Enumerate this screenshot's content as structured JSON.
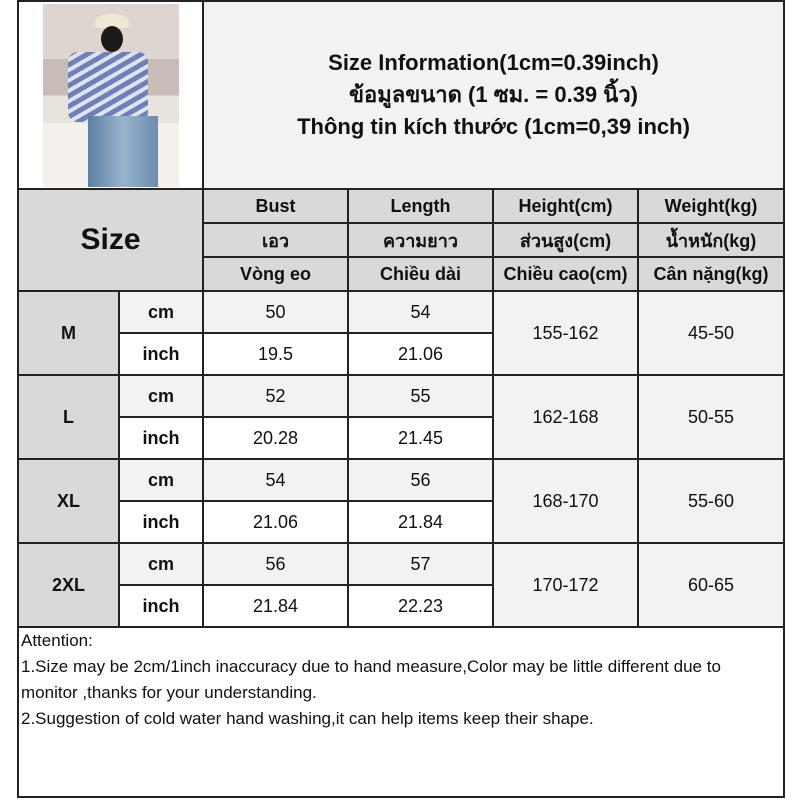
{
  "title": {
    "line1": "Size Information(1cm=0.39inch)",
    "line2": "ข้อมูลขนาด (1 ซม. = 0.39 นิ้ว)",
    "line3": "Thông tin kích thước (1cm=0,39 inch)"
  },
  "size_label": "Size",
  "columns": [
    {
      "en": "Bust",
      "th": "เอว",
      "vi": "Vòng eo"
    },
    {
      "en": "Length",
      "th": "ความยาว",
      "vi": "Chiều dài"
    },
    {
      "en": "Height(cm)",
      "th": "ส่วนสูง(cm)",
      "vi": "Chiều cao(cm)"
    },
    {
      "en": "Weight(kg)",
      "th": "น้ำหนัก(kg)",
      "vi": "Cân nặng(kg)"
    }
  ],
  "units": {
    "cm": "cm",
    "inch": "inch"
  },
  "rows": [
    {
      "size": "M",
      "bust_cm": "50",
      "length_cm": "54",
      "bust_inch": "19.5",
      "length_inch": "21.06",
      "height": "155-162",
      "weight": "45-50"
    },
    {
      "size": "L",
      "bust_cm": "52",
      "length_cm": "55",
      "bust_inch": "20.28",
      "length_inch": "21.45",
      "height": "162-168",
      "weight": "50-55"
    },
    {
      "size": "XL",
      "bust_cm": "54",
      "length_cm": "56",
      "bust_inch": "21.06",
      "length_inch": "21.84",
      "height": "168-170",
      "weight": "55-60"
    },
    {
      "size": "2XL",
      "bust_cm": "56",
      "length_cm": "57",
      "bust_inch": "21.84",
      "length_inch": "22.23",
      "height": "170-172",
      "weight": "60-65"
    }
  ],
  "attention": {
    "heading": "Attention:",
    "note1": "1.Size may be 2cm/1inch inaccuracy due to hand measure,Color may be little different due to monitor ,thanks for your understanding.",
    "note2": "2.Suggestion of cold water hand washing,it can help items keep their shape."
  }
}
